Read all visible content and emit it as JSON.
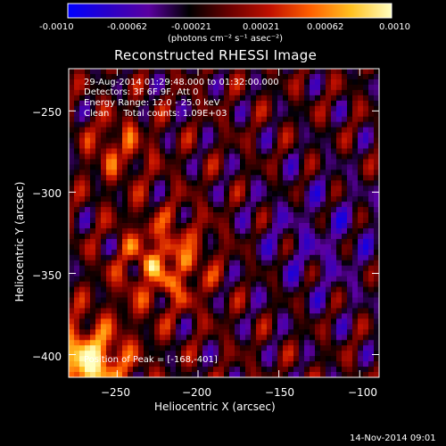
{
  "colorbar": {
    "ticks": [
      "-0.0010",
      "-0.00062",
      "-0.00021",
      "0.00021",
      "0.00062",
      "0.0010"
    ],
    "units_label": "(photons cm⁻² s⁻¹ asec⁻²)",
    "colors": [
      "#0000ff",
      "#2a00c8",
      "#5a00a0",
      "#000000",
      "#6a0000",
      "#c01000",
      "#ff6000",
      "#ffc020",
      "#ffffc0"
    ]
  },
  "header": {
    "title": "Reconstructed RHESSI Image"
  },
  "info_lines": [
    "29-Aug-2014 01:29:48.000 to 01:32:00.000",
    "Detectors: 3F 6F 9F, Att 0",
    "Energy Range: 12.0 - 25.0 keV",
    "Clean     Total counts: 1.09E+03"
  ],
  "peak_label": "Position of Peak = [-168,-401]",
  "footer": {
    "timestamp": "14-Nov-2014 09:01"
  },
  "chart_data": {
    "type": "heatmap",
    "title": "Reconstructed RHESSI Image",
    "xlabel": "Heliocentric X (arcsec)",
    "ylabel": "Heliocentric Y (arcsec)",
    "xlim": [
      -280,
      -88
    ],
    "ylim": [
      -414,
      -224
    ],
    "x_ticks": [
      -250,
      -200,
      -150,
      -100
    ],
    "x_tick_labels": [
      "−250",
      "−200",
      "−150",
      "−100"
    ],
    "y_ticks": [
      -250,
      -300,
      -350,
      -400
    ],
    "y_tick_labels": [
      "−250",
      "−300",
      "−350",
      "−400"
    ],
    "color_range": [
      -0.001,
      0.001
    ],
    "peak_position": [
      -168,
      -401
    ]
  }
}
